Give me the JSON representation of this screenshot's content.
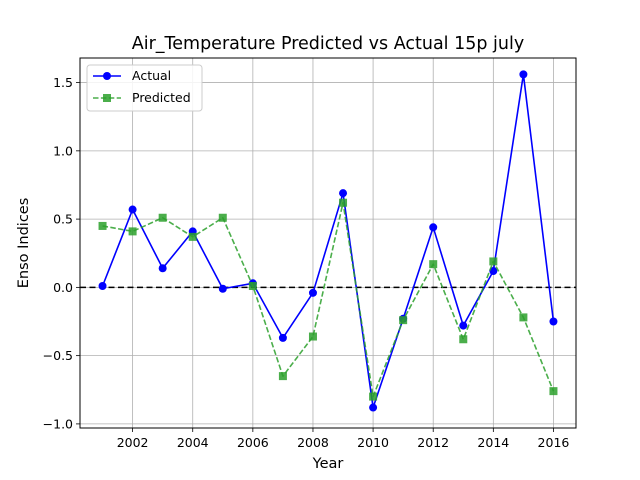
{
  "chart_data": {
    "type": "line",
    "title": "Air_Temperature Predicted vs Actual 15p july",
    "xlabel": "Year",
    "ylabel": "Enso Indices",
    "x": [
      2001,
      2002,
      2003,
      2004,
      2005,
      2006,
      2007,
      2008,
      2009,
      2010,
      2011,
      2012,
      2013,
      2014,
      2015,
      2016
    ],
    "xlim": [
      2000.25,
      2016.75
    ],
    "ylim": [
      -1.03,
      1.68
    ],
    "xticks": [
      2002,
      2004,
      2006,
      2008,
      2010,
      2012,
      2014,
      2016
    ],
    "yticks": [
      -1.0,
      -0.5,
      0.0,
      0.5,
      1.0,
      1.5
    ],
    "xtick_labels": [
      "2002",
      "2004",
      "2006",
      "2008",
      "2010",
      "2012",
      "2014",
      "2016"
    ],
    "ytick_labels": [
      "−1.0",
      "−0.5",
      "0.0",
      "0.5",
      "1.0",
      "1.5"
    ],
    "grid": true,
    "reference_line": {
      "y": 0.0,
      "style": "dashed",
      "color": "#000000"
    },
    "legend": {
      "placement": "top-left"
    },
    "series": [
      {
        "name": "Actual",
        "color": "#0000ff",
        "marker": "circle",
        "linestyle": "solid",
        "values": [
          0.01,
          0.57,
          0.14,
          0.41,
          -0.01,
          0.03,
          -0.37,
          -0.04,
          0.69,
          -0.88,
          -0.23,
          0.44,
          -0.28,
          0.12,
          1.56,
          -0.25
        ]
      },
      {
        "name": "Predicted",
        "color": "#2ca02c",
        "marker": "square",
        "linestyle": "dashed",
        "values": [
          0.45,
          0.41,
          0.51,
          0.37,
          0.51,
          0.01,
          -0.65,
          -0.36,
          0.62,
          -0.8,
          -0.24,
          0.17,
          -0.38,
          0.19,
          -0.22,
          -0.76
        ]
      }
    ]
  }
}
